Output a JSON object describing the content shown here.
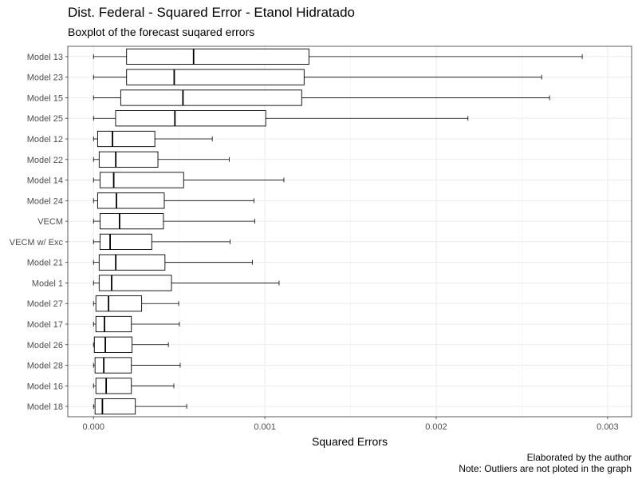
{
  "chart_data": {
    "type": "boxplot",
    "orientation": "horizontal",
    "title": "Dist. Federal - Squared Error - Etanol Hidratado",
    "subtitle": "Boxplot of the forecast suqared errors",
    "xlabel": "Squared Errors",
    "ylabel": "",
    "xlim": [
      -0.00015,
      0.00314
    ],
    "x_ticks": [
      0,
      0.001,
      0.002,
      0.003
    ],
    "x_tick_labels": [
      "0.000",
      "0.001",
      "0.002",
      "0.003"
    ],
    "grid": true,
    "legend": "none",
    "captions": [
      "Elaborated by the author",
      "Note: Outliers are not ploted in the graph"
    ],
    "categories": [
      "Model 13",
      "Model 23",
      "Model 15",
      "Model 25",
      "Model 12",
      "Model 22",
      "Model 14",
      "Model 24",
      "VECM",
      "VECM w/ Exc",
      "Model 21",
      "Model 1",
      "Model 27",
      "Model 17",
      "Model 26",
      "Model 28",
      "Model 16",
      "Model 18"
    ],
    "boxes": [
      {
        "label": "Model 13",
        "min": 0.0,
        "q1": 0.000193,
        "median": 0.000584,
        "q3": 0.001257,
        "max": 0.002852
      },
      {
        "label": "Model 23",
        "min": 0.0,
        "q1": 0.000193,
        "median": 0.000471,
        "q3": 0.001229,
        "max": 0.002615
      },
      {
        "label": "Model 15",
        "min": 0.0,
        "q1": 0.000159,
        "median": 0.000522,
        "q3": 0.001215,
        "max": 0.002661
      },
      {
        "label": "Model 25",
        "min": 0.0,
        "q1": 0.000129,
        "median": 0.000475,
        "q3": 0.001005,
        "max": 0.002185
      },
      {
        "label": "Model 12",
        "min": 0.0,
        "q1": 2.4e-05,
        "median": 0.000111,
        "q3": 0.000358,
        "max": 0.000693
      },
      {
        "label": "Model 22",
        "min": 0.0,
        "q1": 3.3e-05,
        "median": 0.00013,
        "q3": 0.000376,
        "max": 0.000792
      },
      {
        "label": "Model 14",
        "min": 0.0,
        "q1": 3.8e-05,
        "median": 0.000118,
        "q3": 0.000526,
        "max": 0.001111
      },
      {
        "label": "Model 24",
        "min": 0.0,
        "q1": 2.4e-05,
        "median": 0.000134,
        "q3": 0.000413,
        "max": 0.000936
      },
      {
        "label": "VECM",
        "min": 0.0,
        "q1": 3.8e-05,
        "median": 0.000152,
        "q3": 0.000408,
        "max": 0.000941
      },
      {
        "label": "VECM w/ Exc",
        "min": 0.0,
        "q1": 3.8e-05,
        "median": 9.7e-05,
        "q3": 0.00034,
        "max": 0.000797
      },
      {
        "label": "Model 21",
        "min": 0.0,
        "q1": 3.3e-05,
        "median": 0.00013,
        "q3": 0.000417,
        "max": 0.000927
      },
      {
        "label": "Model 1",
        "min": 0.0,
        "q1": 3.3e-05,
        "median": 0.000106,
        "q3": 0.000455,
        "max": 0.001083
      },
      {
        "label": "Model 27",
        "min": 0.0,
        "q1": 1.4e-05,
        "median": 8.8e-05,
        "q3": 0.000281,
        "max": 0.000497
      },
      {
        "label": "Model 17",
        "min": 0.0,
        "q1": 1.4e-05,
        "median": 6.4e-05,
        "q3": 0.000221,
        "max": 0.000501
      },
      {
        "label": "Model 26",
        "min": 0.0,
        "q1": 5e-06,
        "median": 6.9e-05,
        "q3": 0.000225,
        "max": 0.000437
      },
      {
        "label": "Model 28",
        "min": 0.0,
        "q1": 9e-06,
        "median": 6e-05,
        "q3": 0.000221,
        "max": 0.000506
      },
      {
        "label": "Model 16",
        "min": 0.0,
        "q1": 1.4e-05,
        "median": 7.4e-05,
        "q3": 0.000221,
        "max": 0.000469
      },
      {
        "label": "Model 18",
        "min": 0.0,
        "q1": 9e-06,
        "median": 5.2e-05,
        "q3": 0.000244,
        "max": 0.000544
      }
    ]
  }
}
